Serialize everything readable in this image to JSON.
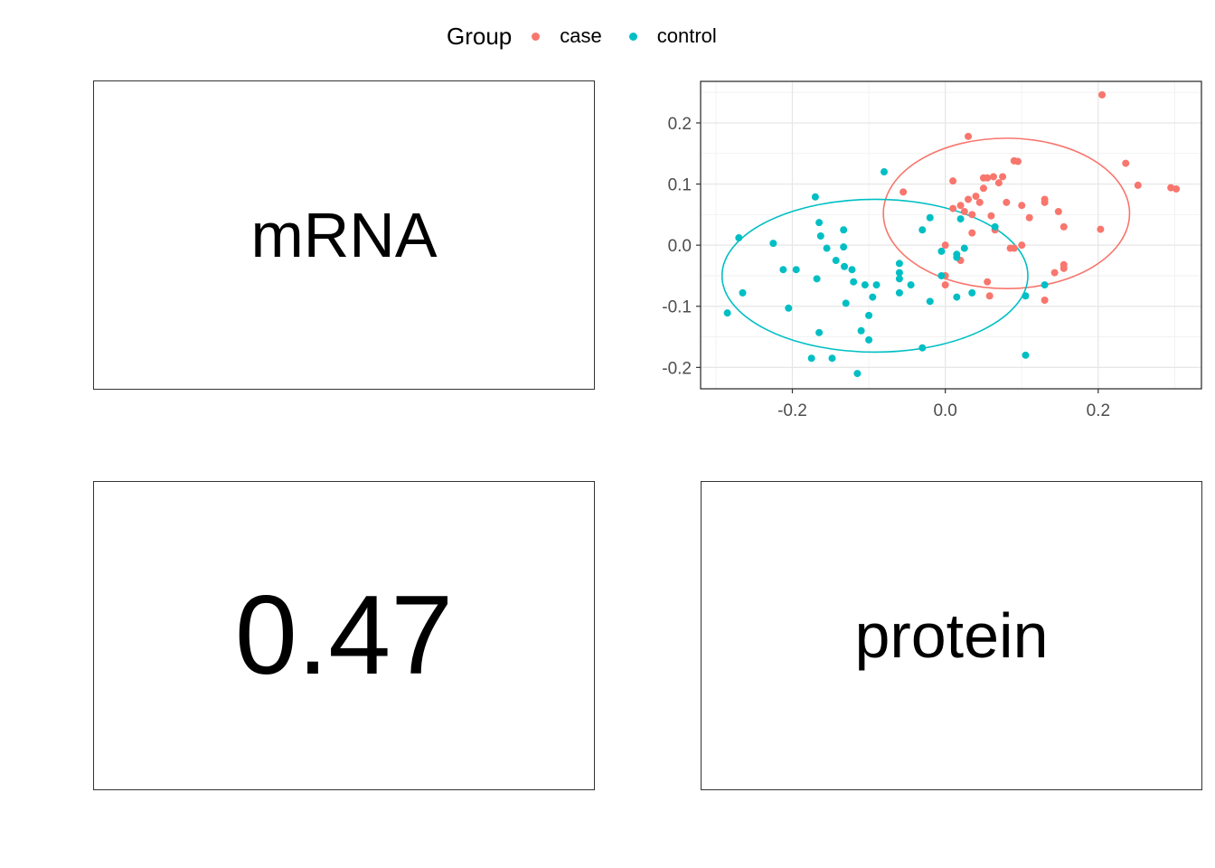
{
  "legend": {
    "title": "Group",
    "items": [
      {
        "label": "case",
        "color": "#F8766D"
      },
      {
        "label": "control",
        "color": "#00BFC4"
      }
    ]
  },
  "panels": {
    "top_left_label": "mRNA",
    "bottom_left_value": "0.47",
    "bottom_right_label": "protein"
  },
  "chart_data": {
    "type": "scatter",
    "title": "",
    "xlabel": "",
    "ylabel": "",
    "xlim": [
      -0.32,
      0.335
    ],
    "ylim": [
      -0.235,
      0.268
    ],
    "x_ticks": [
      -0.2,
      0.0,
      0.2
    ],
    "x_tick_labels": [
      "-0.2",
      "0.0",
      "0.2"
    ],
    "y_ticks": [
      -0.2,
      -0.1,
      0.0,
      0.1,
      0.2
    ],
    "y_tick_labels": [
      "-0.2",
      "-0.1",
      "0.0",
      "0.1",
      "0.2"
    ],
    "grid": true,
    "legend_position": "top",
    "series": [
      {
        "name": "case",
        "color": "#F8766D",
        "ellipse": {
          "cx": 0.08,
          "cy": 0.052,
          "rx": 0.161,
          "ry": 0.123
        },
        "points": [
          [
            0.205,
            0.246
          ],
          [
            0.236,
            0.134
          ],
          [
            0.252,
            0.098
          ],
          [
            0.295,
            0.094
          ],
          [
            0.302,
            0.092
          ],
          [
            0.203,
            0.026
          ],
          [
            0.03,
            0.178
          ],
          [
            0.055,
            0.11
          ],
          [
            0.063,
            0.112
          ],
          [
            0.075,
            0.112
          ],
          [
            0.09,
            0.138
          ],
          [
            0.095,
            0.137
          ],
          [
            0.01,
            0.105
          ],
          [
            0.05,
            0.11
          ],
          [
            0.07,
            0.102
          ],
          [
            0.05,
            0.093
          ],
          [
            0.08,
            0.07
          ],
          [
            0.1,
            0.065
          ],
          [
            0.13,
            0.075
          ],
          [
            0.13,
            0.07
          ],
          [
            0.11,
            0.045
          ],
          [
            0.148,
            0.055
          ],
          [
            0.155,
            0.03
          ],
          [
            0.01,
            0.06
          ],
          [
            0.03,
            0.075
          ],
          [
            0.04,
            0.08
          ],
          [
            0.045,
            0.07
          ],
          [
            0.02,
            0.065
          ],
          [
            0.025,
            0.055
          ],
          [
            0.035,
            0.05
          ],
          [
            0.06,
            0.048
          ],
          [
            0.065,
            0.025
          ],
          [
            0.035,
            0.02
          ],
          [
            0.0,
            0.0
          ],
          [
            0.02,
            -0.025
          ],
          [
            0.0,
            -0.05
          ],
          [
            0.055,
            -0.06
          ],
          [
            0.085,
            -0.005
          ],
          [
            0.09,
            -0.005
          ],
          [
            0.1,
            0.0
          ],
          [
            0.143,
            -0.045
          ],
          [
            0.155,
            -0.032
          ],
          [
            0.155,
            -0.038
          ],
          [
            0.13,
            -0.09
          ],
          [
            0.058,
            -0.083
          ],
          [
            -0.055,
            0.087
          ],
          [
            0.0,
            -0.065
          ]
        ]
      },
      {
        "name": "control",
        "color": "#00BFC4",
        "ellipse": {
          "cx": -0.092,
          "cy": -0.05,
          "rx": 0.2,
          "ry": 0.125
        },
        "points": [
          [
            -0.08,
            0.12
          ],
          [
            -0.17,
            0.079
          ],
          [
            -0.27,
            0.012
          ],
          [
            -0.225,
            0.003
          ],
          [
            -0.165,
            0.037
          ],
          [
            -0.163,
            0.015
          ],
          [
            -0.133,
            0.025
          ],
          [
            -0.133,
            -0.003
          ],
          [
            -0.155,
            -0.005
          ],
          [
            -0.143,
            -0.025
          ],
          [
            -0.132,
            -0.035
          ],
          [
            -0.122,
            -0.04
          ],
          [
            -0.195,
            -0.04
          ],
          [
            -0.212,
            -0.04
          ],
          [
            -0.168,
            -0.055
          ],
          [
            -0.12,
            -0.06
          ],
          [
            -0.105,
            -0.065
          ],
          [
            -0.09,
            -0.065
          ],
          [
            -0.06,
            -0.03
          ],
          [
            -0.06,
            -0.045
          ],
          [
            -0.06,
            -0.055
          ],
          [
            -0.045,
            -0.065
          ],
          [
            -0.06,
            -0.078
          ],
          [
            -0.02,
            -0.092
          ],
          [
            -0.095,
            -0.085
          ],
          [
            -0.13,
            -0.095
          ],
          [
            -0.265,
            -0.078
          ],
          [
            -0.205,
            -0.103
          ],
          [
            -0.285,
            -0.111
          ],
          [
            -0.1,
            -0.115
          ],
          [
            -0.165,
            -0.143
          ],
          [
            -0.11,
            -0.14
          ],
          [
            -0.1,
            -0.155
          ],
          [
            -0.175,
            -0.185
          ],
          [
            -0.148,
            -0.185
          ],
          [
            -0.115,
            -0.21
          ],
          [
            -0.03,
            -0.168
          ],
          [
            0.105,
            -0.18
          ],
          [
            0.13,
            -0.065
          ],
          [
            0.105,
            -0.083
          ],
          [
            0.035,
            -0.078
          ],
          [
            0.015,
            -0.085
          ],
          [
            -0.005,
            -0.05
          ],
          [
            -0.005,
            -0.01
          ],
          [
            0.015,
            -0.015
          ],
          [
            0.025,
            -0.005
          ],
          [
            -0.02,
            0.045
          ],
          [
            -0.03,
            0.025
          ],
          [
            0.02,
            0.043
          ],
          [
            0.065,
            0.03
          ],
          [
            0.015,
            -0.02
          ]
        ]
      }
    ]
  }
}
